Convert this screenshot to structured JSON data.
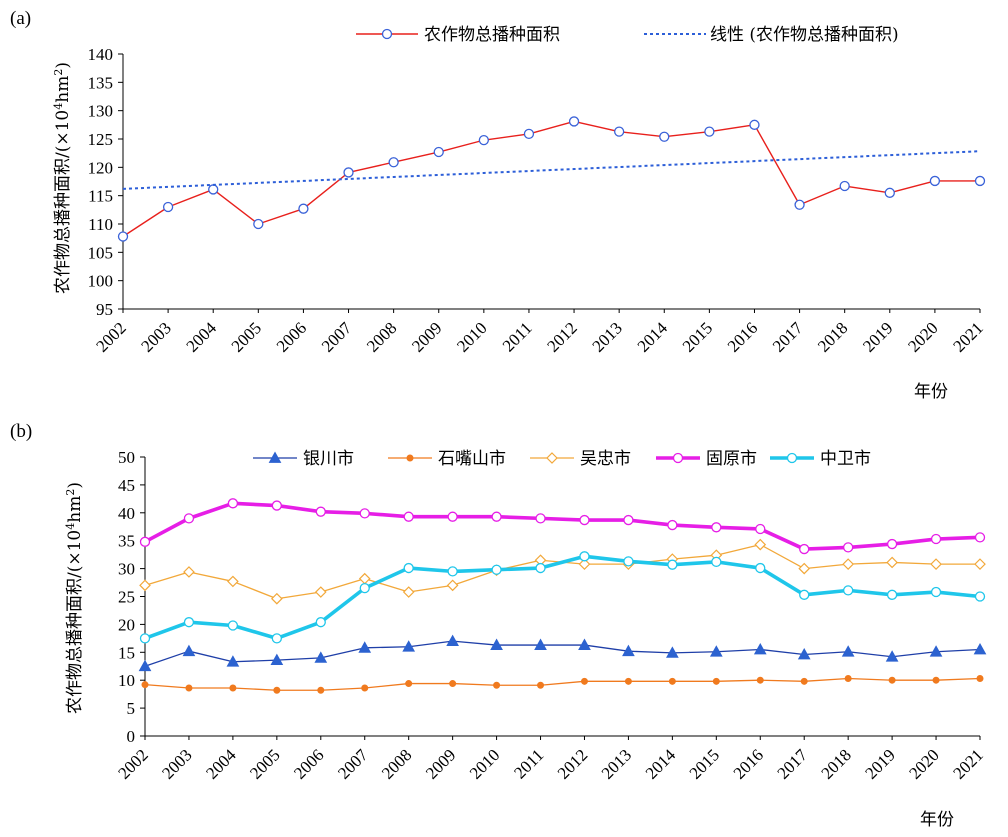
{
  "years": [
    "2002",
    "2003",
    "2004",
    "2005",
    "2006",
    "2007",
    "2008",
    "2009",
    "2010",
    "2011",
    "2012",
    "2013",
    "2014",
    "2015",
    "2016",
    "2017",
    "2018",
    "2019",
    "2020",
    "2021"
  ],
  "chart_data": [
    {
      "panel": "(a)",
      "type": "line",
      "ylabel": "农作物总播种面积/(×10⁴hm²)",
      "ylabel_main": "农作物总播种面积/(×10",
      "ylabel_sup1": "4",
      "ylabel_mid": "hm",
      "ylabel_sup2": "2",
      "ylabel_end": ")",
      "xlabel": "年份",
      "ylim": [
        95,
        140
      ],
      "yticks": [
        95,
        100,
        105,
        110,
        115,
        120,
        125,
        130,
        135,
        140
      ],
      "series": [
        {
          "name": "农作物总播种面积",
          "color": "#e8201c",
          "marker": "circle",
          "marker_fill": "#ffffff",
          "marker_edge": "#3a62d8",
          "style": "solid",
          "values": [
            107.8,
            113.0,
            116.1,
            110.0,
            112.7,
            119.1,
            120.9,
            122.7,
            124.8,
            125.9,
            128.1,
            126.3,
            125.4,
            126.3,
            127.5,
            113.4,
            116.7,
            115.5,
            117.6,
            117.6
          ]
        },
        {
          "name": "线性 (农作物总播种面积)",
          "color": "#2c5ed8",
          "marker": "none",
          "style": "dotted",
          "values": [
            116.2,
            116.55,
            116.9,
            117.25,
            117.6,
            117.95,
            118.3,
            118.65,
            119.0,
            119.35,
            119.7,
            120.05,
            120.4,
            120.75,
            121.1,
            121.45,
            121.8,
            122.15,
            122.5,
            122.85
          ]
        }
      ]
    },
    {
      "panel": "(b)",
      "type": "line",
      "ylabel": "农作物总播种面积/(×10⁴hm²)",
      "ylabel_main": "农作物总播种面积/(×10",
      "ylabel_sup1": "4",
      "ylabel_mid": "hm",
      "ylabel_sup2": "2",
      "ylabel_end": ")",
      "xlabel": "年份",
      "ylim": [
        0,
        50
      ],
      "yticks": [
        0,
        5,
        10,
        15,
        20,
        25,
        30,
        35,
        40,
        45,
        50
      ],
      "series": [
        {
          "name": "银川市",
          "color": "#1f3fa8",
          "marker": "triangle",
          "marker_fill": "#2c62d0",
          "marker_edge": "#2c62d0",
          "width": 1.3,
          "values": [
            12.5,
            15.2,
            13.3,
            13.6,
            14.0,
            15.8,
            16.0,
            17.0,
            16.3,
            16.3,
            16.3,
            15.2,
            14.9,
            15.1,
            15.5,
            14.6,
            15.1,
            14.2,
            15.1,
            15.5
          ]
        },
        {
          "name": "石嘴山市",
          "color": "#f07a1e",
          "marker": "dot",
          "marker_fill": "#f07a1e",
          "marker_edge": "#f07a1e",
          "width": 1.3,
          "values": [
            9.2,
            8.6,
            8.6,
            8.2,
            8.2,
            8.6,
            9.4,
            9.4,
            9.1,
            9.1,
            9.8,
            9.8,
            9.8,
            9.8,
            10.0,
            9.8,
            10.3,
            10.0,
            10.0,
            10.3
          ]
        },
        {
          "name": "吴忠市",
          "color": "#f2a83a",
          "marker": "diamond",
          "marker_fill": "#ffffff",
          "marker_edge": "#f2a83a",
          "width": 1.3,
          "values": [
            27.0,
            29.4,
            27.7,
            24.6,
            25.8,
            28.2,
            25.8,
            27.0,
            29.7,
            31.5,
            30.8,
            30.8,
            31.7,
            32.4,
            34.3,
            30.0,
            30.8,
            31.1,
            30.8,
            30.8
          ]
        },
        {
          "name": "固原市",
          "color": "#e61ee6",
          "marker": "circle",
          "marker_fill": "#ffffff",
          "marker_edge": "#e61ee6",
          "width": 3.6,
          "values": [
            34.8,
            39.0,
            41.7,
            41.3,
            40.2,
            39.9,
            39.3,
            39.3,
            39.3,
            39.0,
            38.7,
            38.7,
            37.8,
            37.4,
            37.1,
            33.5,
            33.8,
            34.4,
            35.3,
            35.6
          ]
        },
        {
          "name": "中卫市",
          "color": "#1fc6ea",
          "marker": "circle",
          "marker_fill": "#ffffff",
          "marker_edge": "#1fc6ea",
          "width": 3.6,
          "values": [
            17.5,
            20.4,
            19.8,
            17.5,
            20.4,
            26.5,
            30.1,
            29.5,
            29.8,
            30.1,
            32.2,
            31.3,
            30.7,
            31.2,
            30.1,
            25.3,
            26.1,
            25.3,
            25.8,
            25.0
          ]
        }
      ]
    }
  ]
}
